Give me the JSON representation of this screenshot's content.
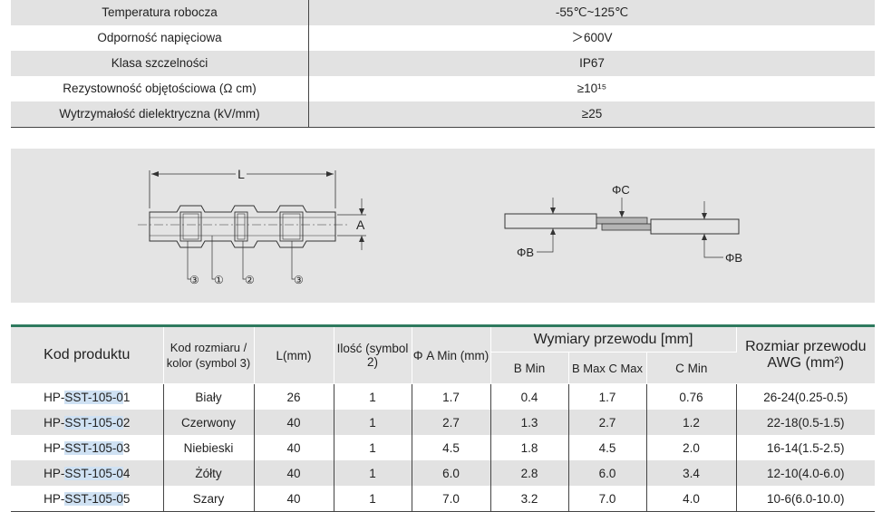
{
  "spec_rows": [
    {
      "label": "Temperatura robocza",
      "value": "-55℃~125℃"
    },
    {
      "label": "Odporność napięciowa",
      "value": "＞600V"
    },
    {
      "label": "Klasa szczelności",
      "value": "IP67"
    },
    {
      "label": "Rezystowność objętościowa (Ω cm)",
      "value": "≥10¹⁵"
    },
    {
      "label": "Wytrzymałość dielektryczna (kV/mm)",
      "value": "≥25"
    }
  ],
  "diagram": {
    "label_L": "L",
    "label_A": "A",
    "label_PhiC": "ΦC",
    "label_PhiB_left": "ΦB",
    "label_PhiB_right": "ΦB",
    "callout_1": "①",
    "callout_2": "②",
    "callout_3_left": "③",
    "callout_3_right": "③"
  },
  "table": {
    "headers": {
      "code": "Kod produktu",
      "size_color": "Kod rozmiaru / kolor (symbol 3)",
      "length": "L(mm)",
      "qty": "Ilość (symbol 2)",
      "phi_a": "Φ A Min (mm)",
      "wire_group": "Wymiary przewodu [mm]",
      "b_min": "B Min",
      "b_max_c_max": "B Max C Max",
      "c_min": "C Min",
      "awg": "Rozmiar przewodu AWG (mm²)"
    },
    "rows": [
      {
        "code_pre": "HP-",
        "code_mid": "SST-105-0",
        "code_suf": "1",
        "color": "Biały",
        "l": "26",
        "qty": "1",
        "phi_a": "1.7",
        "b_min": "0.4",
        "b_max": "1.7",
        "c_min": "0.76",
        "awg": "26-24(0.25-0.5)"
      },
      {
        "code_pre": "HP-",
        "code_mid": "SST-105-0",
        "code_suf": "2",
        "color": "Czerwony",
        "l": "40",
        "qty": "1",
        "phi_a": "2.7",
        "b_min": "1.3",
        "b_max": "2.7",
        "c_min": "1.2",
        "awg": "22-18(0.5-1.5)"
      },
      {
        "code_pre": "HP-",
        "code_mid": "SST-105-0",
        "code_suf": "3",
        "color": "Niebieski",
        "l": "40",
        "qty": "1",
        "phi_a": "4.5",
        "b_min": "1.8",
        "b_max": "4.5",
        "c_min": "2.0",
        "awg": "16-14(1.5-2.5)"
      },
      {
        "code_pre": "HP-",
        "code_mid": "SST-105-0",
        "code_suf": "4",
        "color": "Żółty",
        "l": "40",
        "qty": "1",
        "phi_a": "6.0",
        "b_min": "2.8",
        "b_max": "6.0",
        "c_min": "3.4",
        "awg": "12-10(4.0-6.0)"
      },
      {
        "code_pre": "HP-",
        "code_mid": "SST-105-0",
        "code_suf": "5",
        "color": "Szary",
        "l": "40",
        "qty": "1",
        "phi_a": "7.0",
        "b_min": "3.2",
        "b_max": "7.0",
        "c_min": "4.0",
        "awg": "10-6(6.0-10.0)"
      }
    ]
  }
}
